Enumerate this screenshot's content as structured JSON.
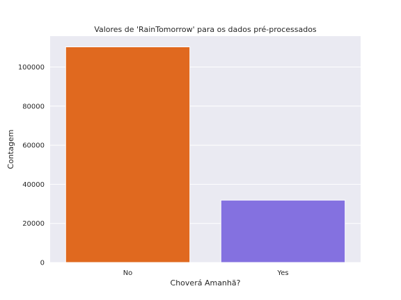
{
  "chart_data": {
    "type": "bar",
    "title": "Valores de 'RainTomorrow' para os dados pré-processados",
    "xlabel": "Choverá Amanhã?",
    "ylabel": "Contagem",
    "categories": [
      "No",
      "Yes"
    ],
    "values": [
      110300,
      31900
    ],
    "colors": [
      "#e0691f",
      "#8471e0"
    ],
    "ylim": [
      0,
      115800
    ],
    "yticks": [
      0,
      20000,
      40000,
      60000,
      80000,
      100000
    ],
    "grid": true,
    "background": "#eaeaf2",
    "legend": "none"
  }
}
